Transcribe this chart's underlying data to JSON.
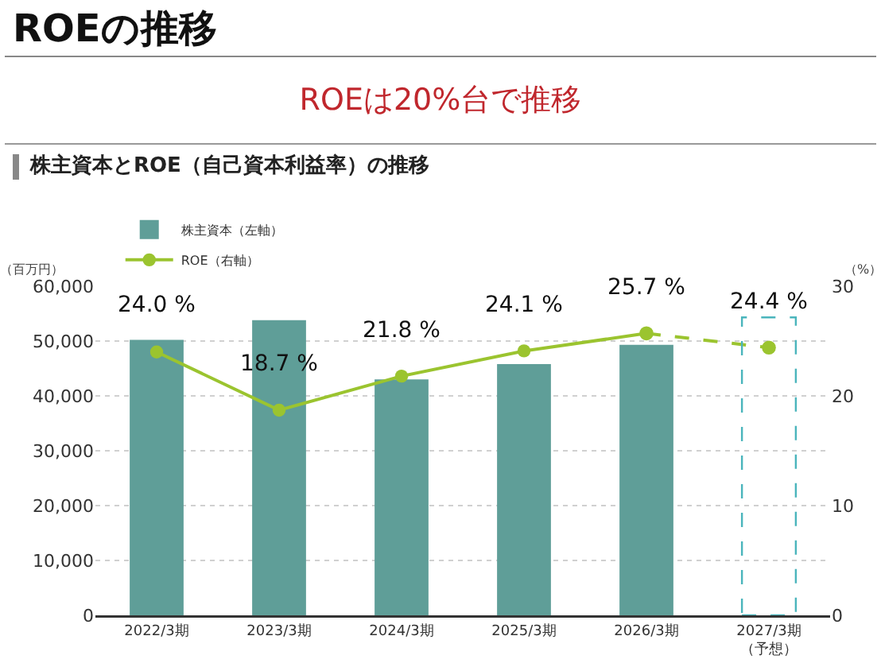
{
  "chart_data": {
    "type": "bar",
    "title": "ROEの推移",
    "subtitle": "ROEは20%台で推移",
    "annotations": [
      "株主資本とROE（自己資本利益率）の推移"
    ],
    "ylabel": "（百万円）",
    "y2label": "（%）",
    "categories": [
      "2022/3期",
      "2023/3期",
      "2024/3期",
      "2025/3期",
      "2026/3期",
      "2027/3期（予想）"
    ],
    "series": [
      {
        "name": "株主資本（左軸）",
        "color": "#5f9e98",
        "values": [
          50200,
          53800,
          43000,
          45800,
          49300,
          null
        ]
      },
      {
        "type": "bar",
        "color": "#4ab5bc",
        "line_style": "dashed",
        "values": [
          null,
          null,
          null,
          null,
          null,
          54300
        ]
      },
      {
        "name": "ROE（右軸）",
        "type": "line",
        "axis": "y2",
        "color": "#9bc42f",
        "marker": "circle",
        "line_style": "solid",
        "values": [
          24.0,
          18.7,
          21.8,
          24.1,
          25.7,
          null
        ],
        "value_labels": [
          "24.0 %",
          "18.7 %",
          "21.8 %",
          "24.1 %",
          "25.7 %",
          null
        ]
      },
      {
        "type": "line",
        "axis": "y2",
        "color": "#9bc42f",
        "marker": "circle",
        "line_style": "dashed",
        "values": [
          null,
          null,
          null,
          null,
          25.7,
          24.4
        ],
        "value_labels": [
          null,
          null,
          null,
          null,
          null,
          "24.4 %"
        ]
      }
    ],
    "ylim": [
      0,
      60000
    ],
    "yticks": [
      {
        "value": 0,
        "label": "0"
      },
      {
        "value": 10000,
        "label": "10,000"
      },
      {
        "value": 20000,
        "label": "20,000"
      },
      {
        "value": 30000,
        "label": "30,000"
      },
      {
        "value": 40000,
        "label": "40,000"
      },
      {
        "value": 50000,
        "label": "50,000"
      },
      {
        "value": 60000,
        "label": "60,000"
      }
    ],
    "y2lim": [
      0,
      30
    ],
    "y2ticks": [
      0,
      10,
      20,
      30
    ],
    "grid": "y",
    "legend": "top left"
  }
}
